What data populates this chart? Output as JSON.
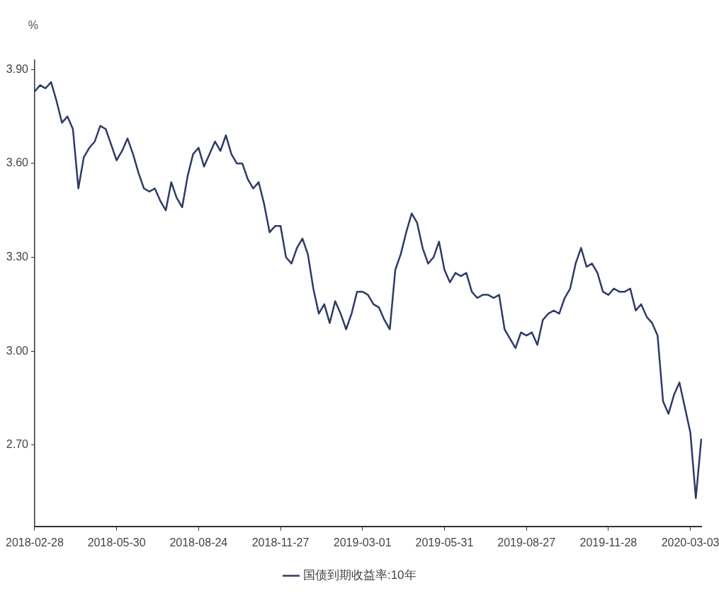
{
  "chart_data": {
    "type": "line",
    "ylabel": "%",
    "categories": [
      "2018-02-28",
      null,
      null,
      null,
      null,
      null,
      null,
      null,
      null,
      null,
      null,
      null,
      null,
      null,
      null,
      "2018-05-30",
      null,
      null,
      null,
      null,
      null,
      null,
      null,
      null,
      null,
      null,
      null,
      null,
      null,
      null,
      "2018-08-24",
      null,
      null,
      null,
      null,
      null,
      null,
      null,
      null,
      null,
      null,
      null,
      null,
      null,
      null,
      "2018-11-27",
      null,
      null,
      null,
      null,
      null,
      null,
      null,
      null,
      null,
      null,
      null,
      null,
      null,
      null,
      "2019-03-01",
      null,
      null,
      null,
      null,
      null,
      null,
      null,
      null,
      null,
      null,
      null,
      null,
      null,
      null,
      "2019-05-31",
      null,
      null,
      null,
      null,
      null,
      null,
      null,
      null,
      null,
      null,
      null,
      null,
      null,
      null,
      "2019-08-27",
      null,
      null,
      null,
      null,
      null,
      null,
      null,
      null,
      null,
      null,
      null,
      null,
      null,
      null,
      "2019-11-28",
      null,
      null,
      null,
      null,
      null,
      null,
      null,
      null,
      null,
      null,
      null,
      null,
      null,
      null,
      "2020-03-03",
      null,
      null
    ],
    "series": [
      {
        "name": "国债到期收益率:10年",
        "color": "#2e3b68",
        "values": [
          3.83,
          3.85,
          3.84,
          3.86,
          3.8,
          3.73,
          3.75,
          3.71,
          3.52,
          3.62,
          3.65,
          3.67,
          3.72,
          3.71,
          3.66,
          3.61,
          3.64,
          3.68,
          3.63,
          3.57,
          3.52,
          3.51,
          3.52,
          3.48,
          3.45,
          3.54,
          3.49,
          3.46,
          3.56,
          3.63,
          3.65,
          3.59,
          3.63,
          3.67,
          3.64,
          3.69,
          3.63,
          3.6,
          3.6,
          3.55,
          3.52,
          3.54,
          3.47,
          3.38,
          3.4,
          3.4,
          3.3,
          3.28,
          3.33,
          3.36,
          3.31,
          3.2,
          3.12,
          3.15,
          3.09,
          3.16,
          3.12,
          3.07,
          3.12,
          3.19,
          3.19,
          3.18,
          3.15,
          3.14,
          3.1,
          3.07,
          3.26,
          3.31,
          3.38,
          3.44,
          3.41,
          3.33,
          3.28,
          3.3,
          3.35,
          3.26,
          3.22,
          3.25,
          3.24,
          3.25,
          3.19,
          3.17,
          3.18,
          3.18,
          3.17,
          3.18,
          3.07,
          3.04,
          3.01,
          3.06,
          3.05,
          3.06,
          3.02,
          3.1,
          3.12,
          3.13,
          3.12,
          3.17,
          3.2,
          3.28,
          3.33,
          3.27,
          3.28,
          3.25,
          3.19,
          3.18,
          3.2,
          3.19,
          3.19,
          3.2,
          3.13,
          3.15,
          3.11,
          3.09,
          3.05,
          2.84,
          2.8,
          2.86,
          2.9,
          2.82,
          2.74,
          2.53,
          2.72
        ]
      }
    ],
    "ylim": [
      2.44,
      3.93
    ],
    "yticks": [
      {
        "value": 2.7,
        "label": "2.70"
      },
      {
        "value": 3.0,
        "label": "3.00"
      },
      {
        "value": 3.3,
        "label": "3.30"
      },
      {
        "value": 3.6,
        "label": "3.60"
      },
      {
        "value": 3.9,
        "label": "3.90"
      }
    ],
    "grid": false,
    "legend": "bottom",
    "marker": "none",
    "line_style": "solid"
  }
}
